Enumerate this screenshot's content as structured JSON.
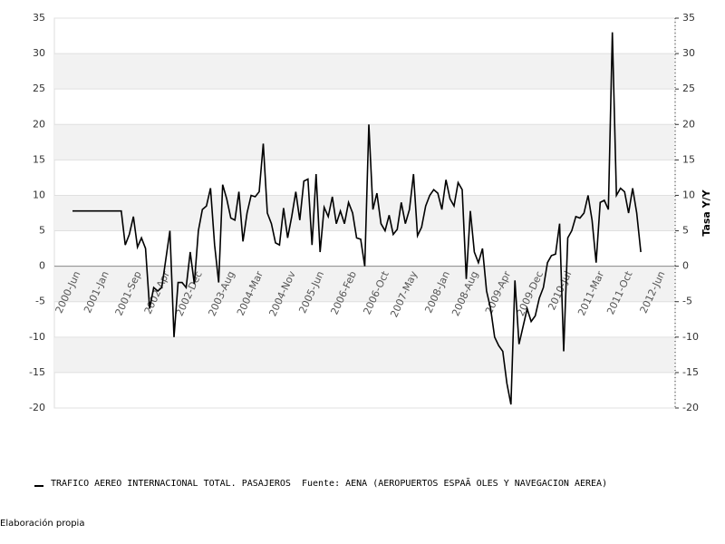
{
  "chart_data": {
    "type": "line",
    "y2label": "Tasa Y/Y",
    "footer": "Elaboración propia",
    "categories": [
      "2000-Jun",
      null,
      null,
      null,
      null,
      null,
      null,
      "2001-Jan",
      null,
      null,
      null,
      null,
      null,
      null,
      null,
      "2001-Sep",
      null,
      null,
      null,
      null,
      null,
      null,
      "2002-Apr",
      null,
      null,
      null,
      null,
      null,
      null,
      null,
      "2002-Dec",
      null,
      null,
      null,
      null,
      null,
      null,
      null,
      "2003-Aug",
      null,
      null,
      null,
      null,
      null,
      null,
      "2004-Mar",
      null,
      null,
      null,
      null,
      null,
      null,
      null,
      "2004-Nov",
      null,
      null,
      null,
      null,
      null,
      null,
      "2005-Jun",
      null,
      null,
      null,
      null,
      null,
      null,
      null,
      "2006-Feb",
      null,
      null,
      null,
      null,
      null,
      null,
      null,
      "2006-Oct",
      null,
      null,
      null,
      null,
      null,
      null,
      "2007-May",
      null,
      null,
      null,
      null,
      null,
      null,
      null,
      "2008-Jan",
      null,
      null,
      null,
      null,
      null,
      null,
      "2008-Aug",
      null,
      null,
      null,
      null,
      null,
      null,
      null,
      "2009-Apr",
      null,
      null,
      null,
      null,
      null,
      null,
      null,
      "2009-Dec",
      null,
      null,
      null,
      null,
      null,
      null,
      "2010-Jul",
      null,
      null,
      null,
      null,
      null,
      null,
      null,
      "2011-Mar",
      null,
      null,
      null,
      null,
      null,
      null,
      "2011-Oct",
      null,
      null,
      null,
      null,
      null,
      null,
      null,
      "2012-Jun"
    ],
    "series": [
      {
        "name": "TRAFICO AEREO INTERNACIONAL TOTAL. PASAJEROS  Fuente: AENA (AEROPUERTOS ESPAÃ OLES Y NAVEGACION AEREA)",
        "color": "#000000",
        "values": [
          7.8,
          7.8,
          7.8,
          7.8,
          7.8,
          7.8,
          7.8,
          7.8,
          7.8,
          7.8,
          7.8,
          7.8,
          7.8,
          3,
          4.5,
          7,
          2.7,
          4,
          2.5,
          -6,
          -3,
          -3.5,
          -3,
          1,
          5,
          -10,
          -2.3,
          -2.3,
          -3,
          2,
          -2.5,
          5,
          8,
          8.5,
          11,
          3,
          -2.3,
          11.5,
          9.5,
          6.8,
          6.5,
          10.5,
          3.5,
          7.5,
          10,
          9.8,
          10.5,
          17.3,
          7.5,
          6,
          3.3,
          3,
          8.2,
          4,
          7,
          10.5,
          6.5,
          12,
          12.3,
          3,
          13,
          2,
          8.3,
          7,
          9.8,
          6,
          7.8,
          6,
          9,
          7.5,
          4,
          3.8,
          0,
          20,
          8,
          10.3,
          6,
          5,
          7.2,
          4.5,
          5.2,
          9,
          6,
          8,
          13,
          4.3,
          5.5,
          8.5,
          10,
          10.8,
          10.3,
          8,
          12.2,
          9.5,
          8.5,
          11.8,
          10.8,
          -1.8,
          7.8,
          2,
          0.5,
          2.5,
          -3.5,
          -6,
          -10,
          -11.2,
          -12,
          -16.5,
          -19.5,
          -2,
          -11,
          -8.5,
          -6,
          -7.8,
          -7,
          -4.5,
          -3,
          0.5,
          1.5,
          1.7,
          6,
          -12,
          4,
          5,
          7,
          6.8,
          7.5,
          10,
          6.5,
          0.5,
          9,
          9.3,
          8,
          33,
          10,
          11,
          10.5,
          7.5,
          11,
          7.5,
          2,
          null,
          null,
          null,
          null
        ]
      }
    ],
    "ylim": [
      -20,
      35
    ],
    "yticks": [
      -20,
      -15,
      -10,
      -5,
      0,
      5,
      10,
      15,
      20,
      25,
      30,
      35
    ],
    "y2lim": [
      -20,
      35
    ],
    "y2ticks": [
      -20,
      -15,
      -10,
      -5,
      0,
      5,
      10,
      15,
      20,
      25,
      30,
      35
    ],
    "grid": "bands"
  }
}
